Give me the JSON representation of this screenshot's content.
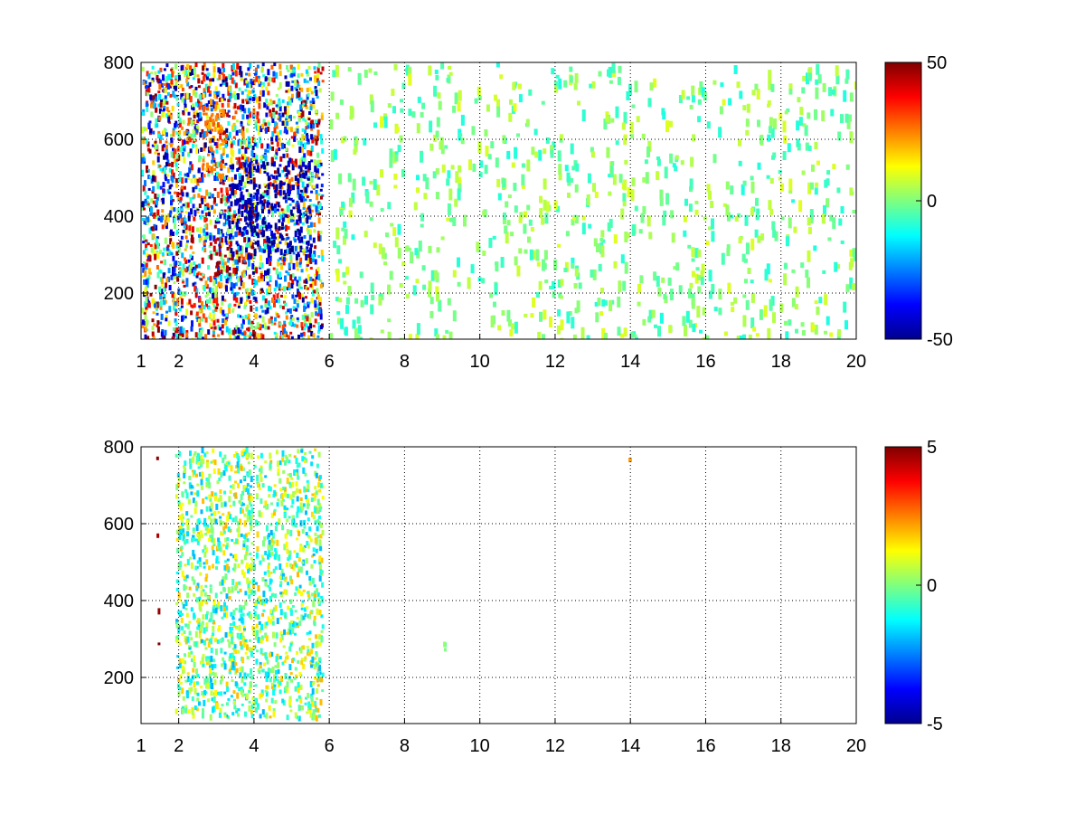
{
  "chart_data": [
    {
      "type": "heatmap",
      "title": "",
      "xlabel": "",
      "ylabel": "",
      "xlim": [
        1,
        20
      ],
      "ylim": [
        80,
        800
      ],
      "grid": true,
      "colormap": "jet",
      "colorbar": {
        "clim": [
          -50,
          50
        ],
        "ticks": [
          -50,
          0,
          50
        ],
        "tick_labels": [
          "-50",
          "0",
          "50"
        ]
      },
      "x_ticks": [
        1,
        2,
        4,
        6,
        8,
        10,
        12,
        14,
        16,
        18,
        20
      ],
      "x_tick_labels": [
        "1",
        "2",
        "4",
        "6",
        "8",
        "10",
        "12",
        "14",
        "16",
        "18",
        "20"
      ],
      "y_ticks": [
        200,
        400,
        600,
        800
      ],
      "y_tick_labels": [
        "200",
        "400",
        "600",
        "800"
      ],
      "features": [
        {
          "x": [
            1.0,
            5.8
          ],
          "y": [
            80,
            800
          ],
          "value_range": [
            -50,
            50
          ],
          "desc": "dense region"
        },
        {
          "x": [
            2.8,
            3.4
          ],
          "y": [
            250,
            350
          ],
          "value": 45
        },
        {
          "x": [
            3.3,
            5.5
          ],
          "y": [
            300,
            550
          ],
          "value": -45
        },
        {
          "x": [
            2.6,
            3.3
          ],
          "y": [
            500,
            700
          ],
          "value": 25
        },
        {
          "x": [
            6.0,
            20.0
          ],
          "y": [
            80,
            800
          ],
          "value_range": [
            -10,
            10
          ],
          "desc": "sparse stripes"
        }
      ]
    },
    {
      "type": "heatmap",
      "title": "",
      "xlabel": "",
      "ylabel": "",
      "xlim": [
        1,
        20
      ],
      "ylim": [
        80,
        800
      ],
      "grid": true,
      "colormap": "jet",
      "colorbar": {
        "clim": [
          -5,
          5
        ],
        "ticks": [
          -5,
          0,
          5
        ],
        "tick_labels": [
          "-5",
          "0",
          "5"
        ]
      },
      "x_ticks": [
        1,
        2,
        4,
        6,
        8,
        10,
        12,
        14,
        16,
        18,
        20
      ],
      "x_tick_labels": [
        "1",
        "2",
        "4",
        "6",
        "8",
        "10",
        "12",
        "14",
        "16",
        "18",
        "20"
      ],
      "y_ticks": [
        200,
        400,
        600,
        800
      ],
      "y_tick_labels": [
        "200",
        "400",
        "600",
        "800"
      ],
      "features": [
        {
          "x": [
            1.9,
            5.8
          ],
          "y": [
            100,
            800
          ],
          "value_range": [
            -2,
            2
          ],
          "desc": "dense region"
        },
        {
          "x": [
            1.4,
            1.45
          ],
          "y": [
            250,
            790
          ],
          "value": 5,
          "desc": "vertical line"
        },
        {
          "x": [
            9.0,
            9.05
          ],
          "y": [
            270,
            295
          ],
          "value": 0
        },
        {
          "x": [
            13.9,
            14.0
          ],
          "y": [
            770,
            780
          ],
          "value": 2
        }
      ]
    }
  ]
}
